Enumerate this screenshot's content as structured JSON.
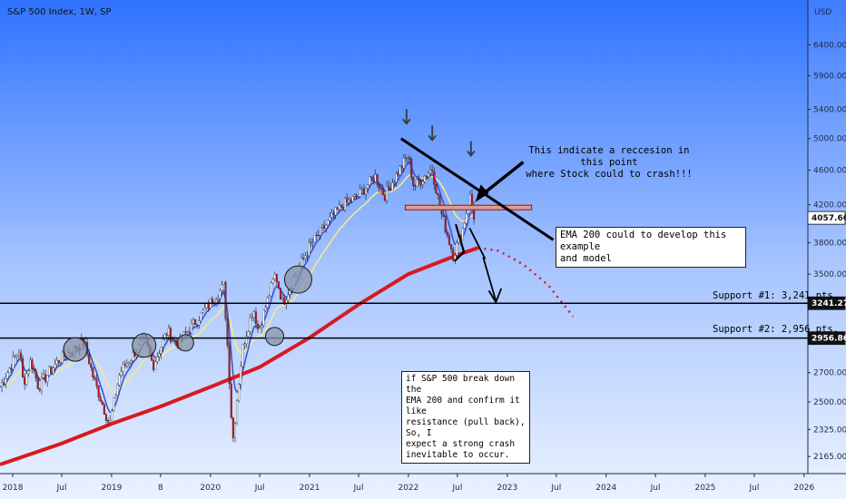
{
  "chart_title": "S&P 500 Index, 1W, SP",
  "currency": "USD",
  "colors": {
    "bg_top": "#2f73ff",
    "bg_bottom": "#eaf2ff",
    "ema200": "#d71921",
    "ema_short_yellow": "#f2eb8c",
    "ema_short_blue": "#3a55d8",
    "candle_up": "#ffffff",
    "candle_down": "#c0192a",
    "support": "#000000",
    "resistance_box": "#e79a85",
    "circle_fill": "#8a94a8"
  },
  "y_axis_labels": [
    "6400.00",
    "5900.00",
    "5400.00",
    "5000.00",
    "4600.00",
    "4200.00",
    "3800.00",
    "3500.00",
    "2700.00",
    "2500.00",
    "2325.00",
    "2165.00"
  ],
  "price_tags": {
    "current": "4057.66",
    "support1": "3241.27",
    "support2": "2956.86"
  },
  "x_axis_labels": [
    "2018",
    "Jul",
    "2019",
    "8",
    "2020",
    "Jul",
    "2021",
    "Jul",
    "2022",
    "Jul",
    "2023",
    "Jul",
    "2024",
    "Jul",
    "2025",
    "Jul",
    "2026"
  ],
  "annotations": {
    "recession_line1": "This indicate a reccesion in this point",
    "recession_line2": "where Stock could to crash!!!",
    "ema_box_line1": "EMA 200 could to develop this example",
    "ema_box_line2": "and model",
    "support1_label": "Support #1: 3,241 pts.",
    "support2_label": "Support #2: 2,956 pts.",
    "crash_line1": "if S&P 500 break down the",
    "crash_line2": "EMA 200 and confirm it like",
    "crash_line3": "resistance (pull back), So, I",
    "crash_line4": "expect a strong crash",
    "crash_line5": "inevitable to occur."
  },
  "chart_data": {
    "type": "line",
    "title": "S&P 500 Index, 1W, SP",
    "y_scale": "log",
    "ylim": [
      2070,
      7200
    ],
    "x_range": [
      "2017-11-15",
      "2026-01-15"
    ],
    "series": [
      {
        "kind": "price",
        "x": [
          "2017-11-15",
          "2018-01-26",
          "2018-02-09",
          "2018-03-09",
          "2018-04-06",
          "2018-06-15",
          "2018-09-21",
          "2018-10-26",
          "2018-12-24",
          "2019-02-01",
          "2019-05-03",
          "2019-06-03",
          "2019-07-26",
          "2019-08-30",
          "2019-11-29",
          "2020-02-19",
          "2020-03-23",
          "2020-04-30",
          "2020-06-08",
          "2020-06-26",
          "2020-08-28",
          "2020-09-24",
          "2020-12-31",
          "2021-04-30",
          "2021-06-30",
          "2021-08-31",
          "2021-10-04",
          "2021-12-31",
          "2022-01-21",
          "2022-03-29",
          "2022-04-29",
          "2022-06-16",
          "2022-07-22",
          "2022-08-16",
          "2022-09-01"
        ],
        "values": [
          2600,
          2870,
          2620,
          2790,
          2600,
          2780,
          2930,
          2660,
          2350,
          2700,
          2950,
          2750,
          3010,
          2900,
          3150,
          3390,
          2240,
          2900,
          3200,
          3010,
          3500,
          3240,
          3760,
          4190,
          4300,
          4530,
          4300,
          4780,
          4400,
          4620,
          4140,
          3670,
          3960,
          4300,
          4060
        ]
      },
      {
        "name": "EMA 200",
        "x": [
          "2017-11-15",
          "2018-06-30",
          "2019-01-01",
          "2019-07-01",
          "2020-01-01",
          "2020-07-01",
          "2021-01-01",
          "2021-07-01",
          "2022-01-01",
          "2022-07-01",
          "2022-09-15"
        ],
        "values": [
          2120,
          2240,
          2360,
          2470,
          2600,
          2740,
          2960,
          3230,
          3500,
          3680,
          3750
        ]
      },
      {
        "name": "EMA 200 projection",
        "x": [
          "2022-09-15",
          "2022-12-01",
          "2023-03-01",
          "2023-06-01",
          "2023-09-01"
        ],
        "values": [
          3750,
          3720,
          3590,
          3400,
          3130
        ]
      }
    ],
    "support_levels": [
      3241.27,
      2956.86
    ],
    "resistance_level": 4170,
    "y_tick_labels": [
      "6400.00",
      "5900.00",
      "5400.00",
      "5000.00",
      "4600.00",
      "4200.00",
      "3800.00",
      "3500.00",
      "2700.00",
      "2500.00",
      "2325.00",
      "2165.00"
    ],
    "x_tick_labels": [
      "2018",
      "Jul",
      "2019",
      "8",
      "2020",
      "Jul",
      "2021",
      "Jul",
      "2022",
      "Jul",
      "2023",
      "Jul",
      "2024",
      "Jul",
      "2025",
      "Jul",
      "2026"
    ]
  }
}
